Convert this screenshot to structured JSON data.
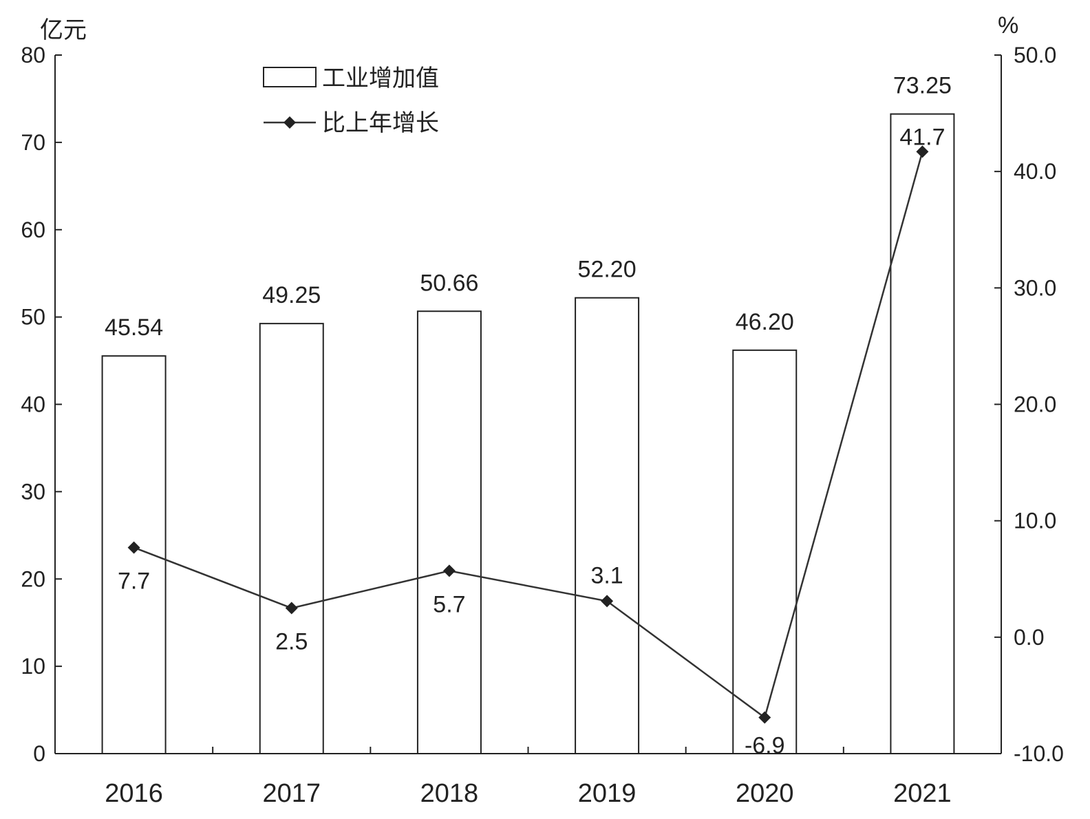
{
  "chart_data": {
    "type": "bar",
    "categories": [
      "2016",
      "2017",
      "2018",
      "2019",
      "2020",
      "2021"
    ],
    "series": [
      {
        "name": "工业增加值",
        "type": "bar",
        "axis": "left",
        "values": [
          45.54,
          49.25,
          50.66,
          52.2,
          46.2,
          73.25
        ],
        "labels": [
          "45.54",
          "49.25",
          "50.66",
          "52.20",
          "46.20",
          "73.25"
        ]
      },
      {
        "name": "比上年增长",
        "type": "line",
        "axis": "right",
        "values": [
          7.7,
          2.5,
          5.7,
          3.1,
          -6.9,
          41.7
        ],
        "labels": [
          "7.7",
          "2.5",
          "5.7",
          "3.1",
          "-6.9",
          "41.7"
        ]
      }
    ],
    "left_axis": {
      "unit": "亿元",
      "ylim": [
        0,
        80
      ],
      "ticks": [
        "0",
        "10",
        "20",
        "30",
        "40",
        "50",
        "60",
        "70",
        "80"
      ]
    },
    "right_axis": {
      "unit": "%",
      "ylim": [
        -10,
        50
      ],
      "ticks": [
        "-10.0",
        "0.0",
        "10.0",
        "20.0",
        "30.0",
        "40.0",
        "50.0"
      ]
    },
    "grid": false,
    "legend": "top-left"
  }
}
